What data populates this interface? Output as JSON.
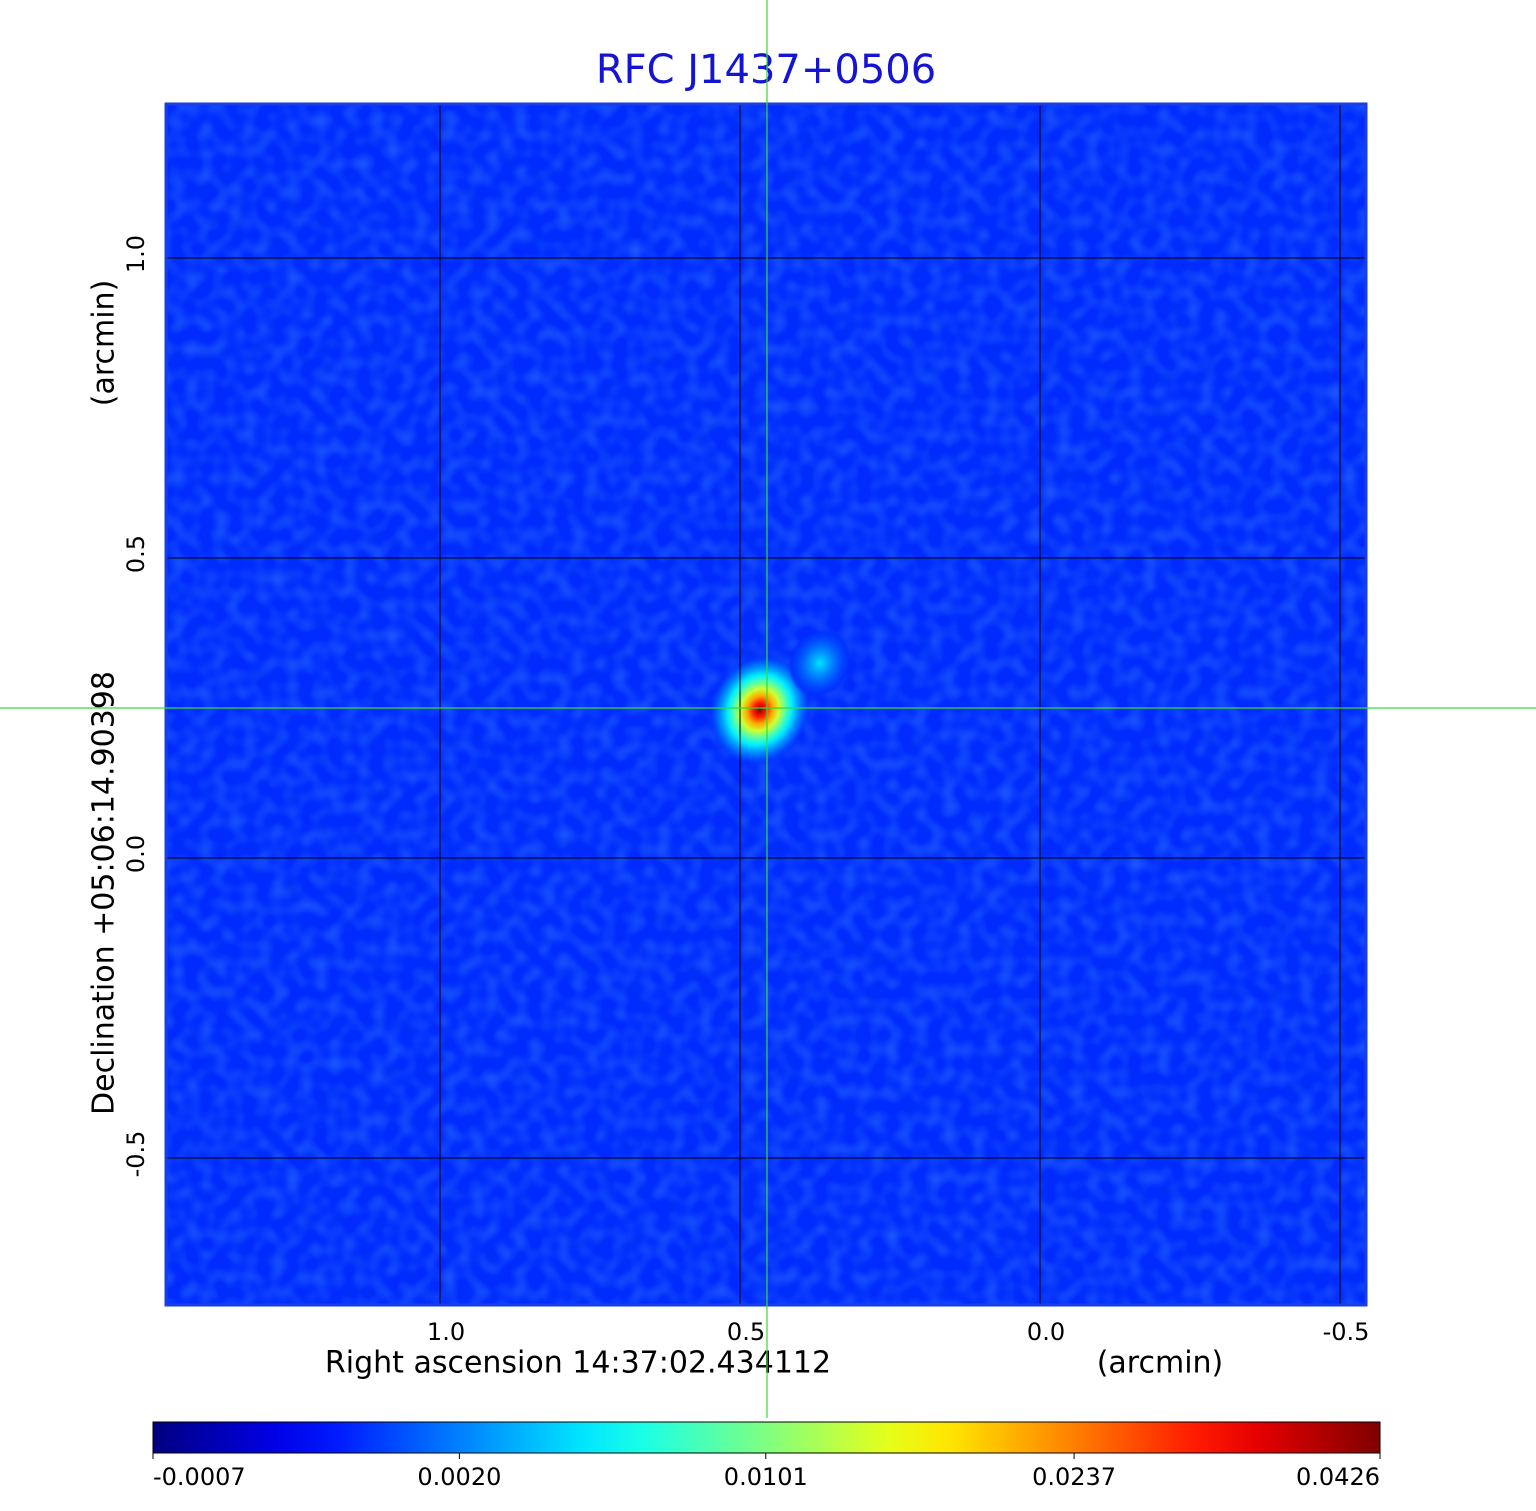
{
  "chart_data": {
    "type": "image",
    "title": "RFC J1437+0506",
    "x_label": "Right ascension  14:37:02.434112",
    "x_unit": "(arcmin)",
    "y_label": "Declination  +05:06:14.90398",
    "y_unit": "(arcmin)",
    "xlim": [
      1.4567,
      -0.5433
    ],
    "ylim": [
      -0.745,
      1.2567
    ],
    "xticks": [
      {
        "value": 1,
        "label": "1.0"
      },
      0.5,
      {
        "value": 0,
        "label": "0.0"
      },
      -0.5
    ],
    "yticks": [
      {
        "value": 1,
        "label": "1.0"
      },
      0.5,
      {
        "value": 0,
        "label": "0.0"
      },
      -0.5
    ],
    "grid": true,
    "colormap": "jet",
    "color_scale": "sqrt",
    "clim": [
      -0.0007,
      0.0426
    ],
    "cticks": [
      -0.0007,
      {
        "value": 0.002,
        "label": "0.0020"
      },
      0.0101,
      0.0237,
      0.0426
    ],
    "background_level": 0.0005,
    "sources": [
      {
        "x": 0.467,
        "y": 0.247,
        "peak": 0.0426
      },
      {
        "x": 0.367,
        "y": 0.325,
        "peak": 0.0046
      }
    ]
  }
}
